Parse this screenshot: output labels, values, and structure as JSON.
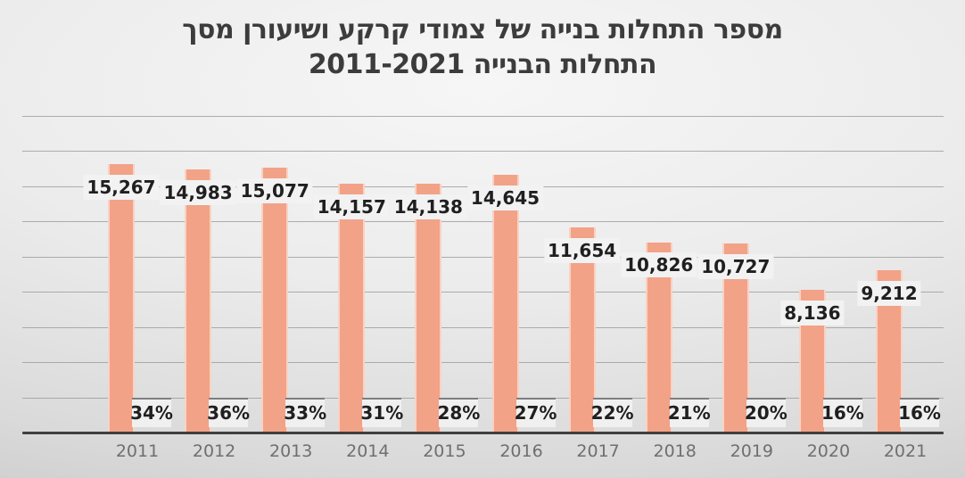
{
  "chart_data": {
    "type": "bar",
    "title": "מספר התחלות בנייה של צמודי קרקע ושיעורן מסך התחלות הבנייה 2011-2021",
    "title_lines": [
      "מספר התחלות בנייה של צמודי קרקע ושיעורן מסך",
      "התחלות הבנייה 2011-2021"
    ],
    "categories": [
      "2011",
      "2012",
      "2013",
      "2014",
      "2015",
      "2016",
      "2017",
      "2018",
      "2019",
      "2020",
      "2021"
    ],
    "series": [
      {
        "id": "building-starts-count",
        "values": [
          15267,
          14983,
          15077,
          14157,
          14138,
          14645,
          11654,
          10826,
          10727,
          8136,
          9212
        ],
        "labels": [
          "15,267",
          "14,983",
          "15,077",
          "14,157",
          "14,138",
          "14,645",
          "11,654",
          "10,826",
          "10,727",
          "8,136",
          "9,212"
        ]
      },
      {
        "id": "share-of-total-starts",
        "values_pct": [
          34,
          36,
          33,
          31,
          28,
          27,
          22,
          21,
          20,
          16,
          16
        ],
        "labels": [
          "34%",
          "36%",
          "33%",
          "31%",
          "28%",
          "27%",
          "22%",
          "21%",
          "20%",
          "16%",
          "16%"
        ]
      }
    ],
    "ylim": [
      0,
      18000
    ],
    "gridline_step": 2000,
    "grid": true,
    "legend": "none",
    "xlabel": "",
    "ylabel": "",
    "colors": {
      "bar_fill": "#f2a287",
      "bar_edge_highlight": "#f9d2c4",
      "value_label_text": "#1f1f1f",
      "value_label_bg": "#f2f2f2",
      "pct_label_bg": "#f0f0f0",
      "pct_label_edge": "#7e7e7e",
      "axis_line": "#3f3f3f",
      "gridline": "#9b9b9b",
      "year_text": "#6f6f6f",
      "title_text": "#3c3c3c"
    }
  }
}
